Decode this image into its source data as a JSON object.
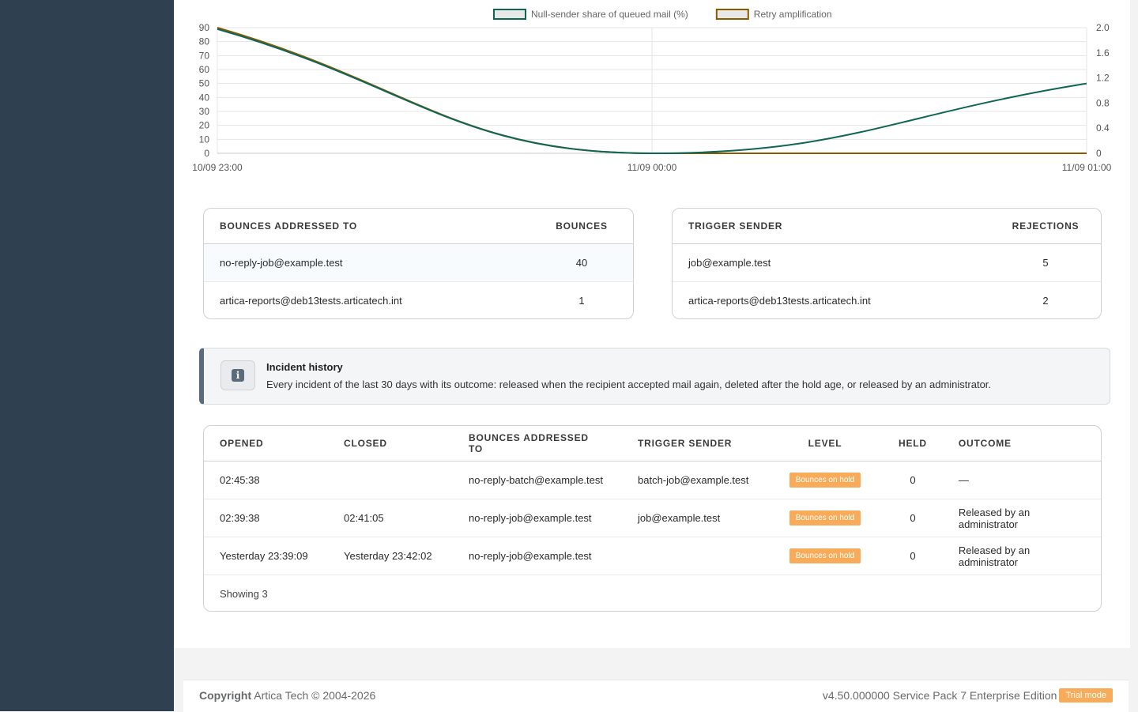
{
  "chart_data": {
    "type": "line",
    "x": [
      "10/09 23:00",
      "11/09 00:00",
      "11/09 01:00"
    ],
    "series": [
      {
        "name": "Null-sender share of queued mail (%)",
        "axis": "left",
        "values": [
          89,
          0,
          50
        ],
        "color": "#0e6655"
      },
      {
        "name": "Retry amplification",
        "axis": "right",
        "values": [
          2.0,
          0,
          0
        ],
        "color": "#8a5a00"
      }
    ],
    "y_left": {
      "ticks": [
        0,
        10,
        20,
        30,
        40,
        50,
        60,
        70,
        80,
        90
      ],
      "range": [
        0,
        90
      ]
    },
    "y_right": {
      "ticks": [
        "0",
        "0.4",
        "0.8",
        "1.2",
        "1.6",
        "2.0"
      ],
      "range": [
        0,
        2.0
      ]
    },
    "legend": "top",
    "grid": true
  },
  "bounces_table": {
    "headers": [
      "Bounces addressed to",
      "Bounces"
    ],
    "rows": [
      {
        "address": "no-reply-job@example.test",
        "count": "40"
      },
      {
        "address": "artica-reports@deb13tests.articatech.int",
        "count": "1"
      }
    ]
  },
  "senders_table": {
    "headers": [
      "Trigger sender",
      "Rejections"
    ],
    "rows": [
      {
        "sender": "job@example.test",
        "count": "5"
      },
      {
        "sender": "artica-reports@deb13tests.articatech.int",
        "count": "2"
      }
    ]
  },
  "notice": {
    "title": "Incident history",
    "text": "Every incident of the last 30 days with its outcome: released when the recipient accepted mail again, deleted after the hold age, or released by an administrator."
  },
  "incidents": {
    "headers": [
      "Opened",
      "Closed",
      "Bounces addressed to",
      "Trigger sender",
      "Level",
      "Held",
      "Outcome"
    ],
    "rows": [
      {
        "opened": "02:45:38",
        "closed": "",
        "to": "no-reply-batch@example.test",
        "sender": "batch-job@example.test",
        "level": "Bounces on hold",
        "held": "0",
        "outcome": "—"
      },
      {
        "opened": "02:39:38",
        "closed": "02:41:05",
        "to": "no-reply-job@example.test",
        "sender": "job@example.test",
        "level": "Bounces on hold",
        "held": "0",
        "outcome": "Released by an administrator"
      },
      {
        "opened": "Yesterday 23:39:09",
        "closed": "Yesterday 23:42:02",
        "to": "no-reply-job@example.test",
        "sender": "",
        "level": "Bounces on hold",
        "held": "0",
        "outcome": "Released by an administrator"
      }
    ],
    "footer": "Showing 3"
  },
  "footer": {
    "copyright_label": "Copyright",
    "copyright_text": "Artica Tech © 2004-2026",
    "version": "v4.50.000000 Service Pack 7 Enterprise Edition",
    "trial": "Trial mode"
  }
}
